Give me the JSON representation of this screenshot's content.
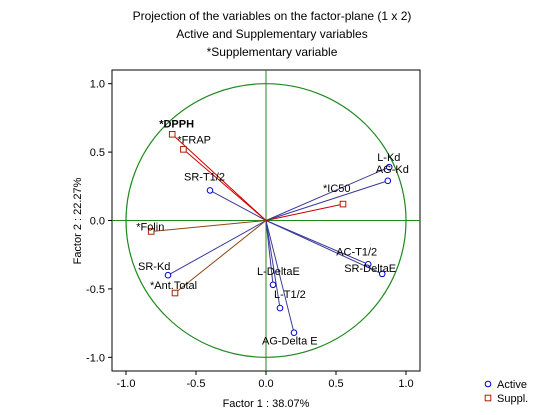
{
  "chart_data": {
    "type": "scatter",
    "title": [
      "Projection of the variables on the factor-plane (1 x 2)",
      "Active and Supplementary variables",
      "*Supplementary variable"
    ],
    "xlabel": "Factor 1 : 38.07%",
    "ylabel": "Factor 2 : 22.27%",
    "xlim": [
      -1.1,
      1.1
    ],
    "ylim": [
      -1.1,
      1.1
    ],
    "x_ticks": [
      -1.0,
      -0.5,
      0.0,
      0.5,
      1.0
    ],
    "x_tick_labels": [
      "-1.0",
      "-0.5",
      "0.0",
      "0.5",
      "1.0"
    ],
    "y_ticks": [
      1.0,
      0.5,
      0.0,
      -0.5,
      -1.0
    ],
    "y_tick_labels": [
      "1.0",
      "0.5",
      "0.0",
      "-0.5",
      "-1.0"
    ],
    "unit_circle": true,
    "colors": {
      "circle": "#1e8a1e",
      "zero_lines": "#1e8a1e",
      "active": "#0000cc",
      "active_vector": "#3a3a9a",
      "supplementary": "#aa2200",
      "supplementary_vector_red": "#cc0000",
      "supplementary_vector_brown": "#8b4513"
    },
    "series": [
      {
        "name": "Active",
        "marker": "circle",
        "points": [
          {
            "label": "L-Kd",
            "x": 0.88,
            "y": 0.39
          },
          {
            "label": "AG-Kd",
            "x": 0.87,
            "y": 0.29
          },
          {
            "label": "SR-T1/2",
            "x": -0.4,
            "y": 0.22
          },
          {
            "label": "AC-T1/2",
            "x": 0.73,
            "y": -0.32
          },
          {
            "label": "SR-DeltaE",
            "x": 0.83,
            "y": -0.39
          },
          {
            "label": "L-DeltaE",
            "x": 0.05,
            "y": -0.47
          },
          {
            "label": "L-T1/2",
            "x": 0.1,
            "y": -0.64
          },
          {
            "label": "AG-Delta E",
            "x": 0.2,
            "y": -0.82
          },
          {
            "label": "SR-Kd",
            "x": -0.7,
            "y": -0.4
          }
        ]
      },
      {
        "name": "Suppl.",
        "marker": "square",
        "points": [
          {
            "label": "*DPPH",
            "x": -0.67,
            "y": 0.63,
            "bold": true,
            "vector": "red"
          },
          {
            "label": "*FRAP",
            "x": -0.59,
            "y": 0.52,
            "vector": "red"
          },
          {
            "label": "*IC50",
            "x": 0.55,
            "y": 0.12,
            "vector": "red"
          },
          {
            "label": "*Folin",
            "x": -0.82,
            "y": -0.08,
            "vector": "brown"
          },
          {
            "label": "*Ant.Total",
            "x": -0.65,
            "y": -0.53,
            "vector": "brown"
          }
        ]
      }
    ],
    "legend": {
      "position": "bottom-right",
      "entries": [
        {
          "label": "Active",
          "marker": "circle"
        },
        {
          "label": "Suppl.",
          "marker": "square"
        }
      ]
    }
  }
}
